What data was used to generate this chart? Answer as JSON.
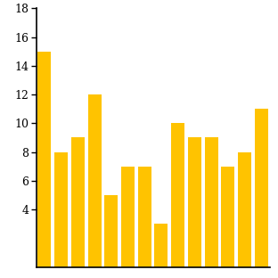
{
  "values": [
    15,
    8,
    9,
    12,
    5,
    7,
    7,
    3,
    10,
    9,
    9,
    7,
    8,
    11
  ],
  "bar_color": "#FFC300",
  "ylim": [
    0,
    18
  ],
  "yticks": [
    4,
    6,
    8,
    10,
    12,
    14,
    16,
    18
  ],
  "background_color": "#ffffff",
  "bar_width": 0.8,
  "spine_color": "#000000",
  "figsize": [
    3.12,
    3.12
  ],
  "dpi": 100
}
